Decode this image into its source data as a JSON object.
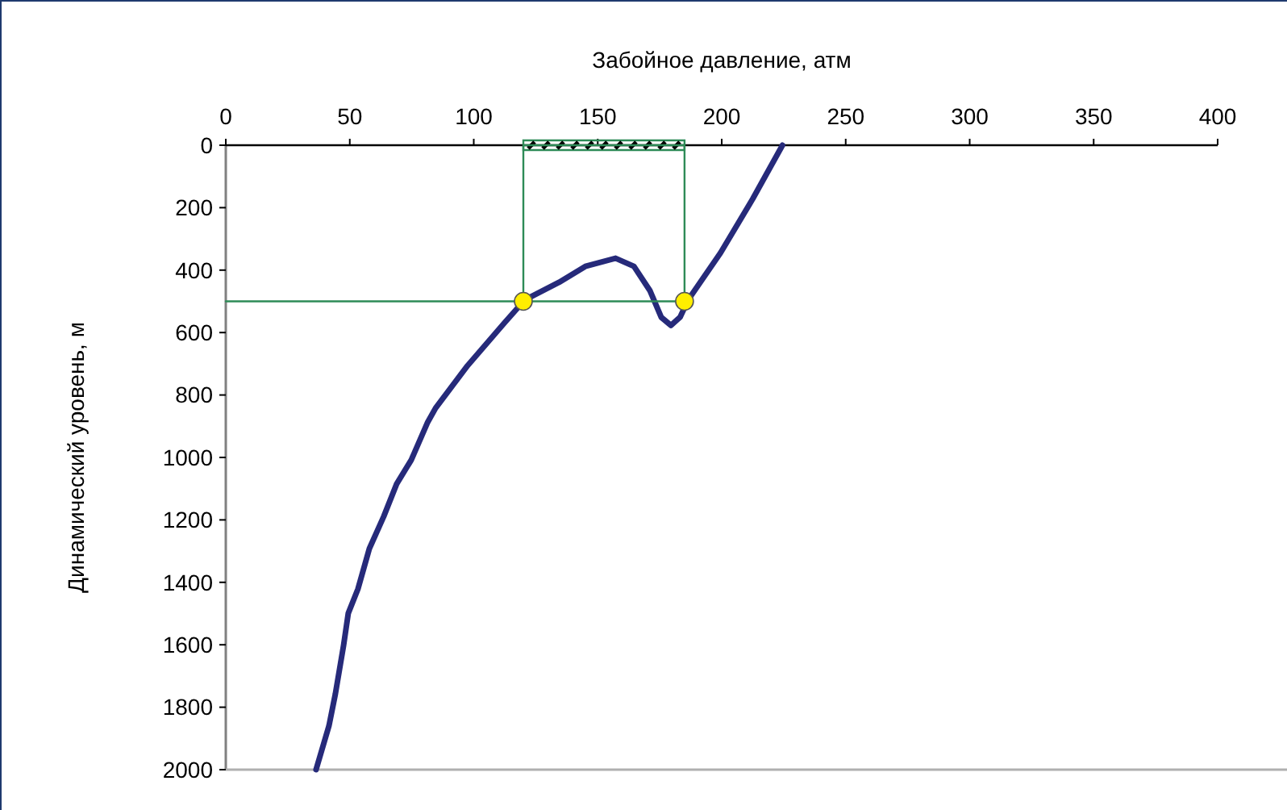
{
  "chart_data": {
    "type": "line",
    "xlabel": "Забойное давление, атм",
    "ylabel": "Динамический уровень, м",
    "xlim": [
      0,
      400
    ],
    "xticks": [
      0,
      50,
      100,
      150,
      200,
      250,
      300,
      350,
      400
    ],
    "ylim": [
      2000,
      0
    ],
    "yticks": [
      0,
      200,
      400,
      600,
      800,
      1000,
      1200,
      1400,
      1600,
      1800,
      2000
    ],
    "grid": false,
    "marker": "none",
    "line_style": "solid",
    "series": [
      {
        "color": "#262a7a",
        "x": [
          36.4,
          41.6,
          44.2,
          47.5,
          49.4,
          53.3,
          57.9,
          63.7,
          68.9,
          74.8,
          81.3,
          84.6,
          97.5,
          112.5,
          120.5,
          134.4,
          145,
          157.2,
          164.6,
          171,
          175.6,
          179.5,
          183.2,
          186.4,
          199.5,
          212.5,
          224.5
        ],
        "values": [
          2000,
          1860,
          1757,
          1602,
          1499,
          1421,
          1292,
          1189,
          1085,
          1008,
          889,
          842,
          706,
          568,
          496,
          439,
          388,
          362,
          388,
          465,
          551,
          577,
          551,
          496,
          345,
          172,
          0
        ]
      },
      {
        "type": "line",
        "color": "#2e8b57",
        "x": [
          0,
          185,
          185,
          120,
          120
        ],
        "values": [
          500,
          500,
          0,
          0,
          500
        ]
      },
      {
        "type": "scatter",
        "color": "#ffee00",
        "marker": "circle",
        "x": [
          120,
          185
        ],
        "values": [
          500,
          500
        ]
      }
    ]
  }
}
